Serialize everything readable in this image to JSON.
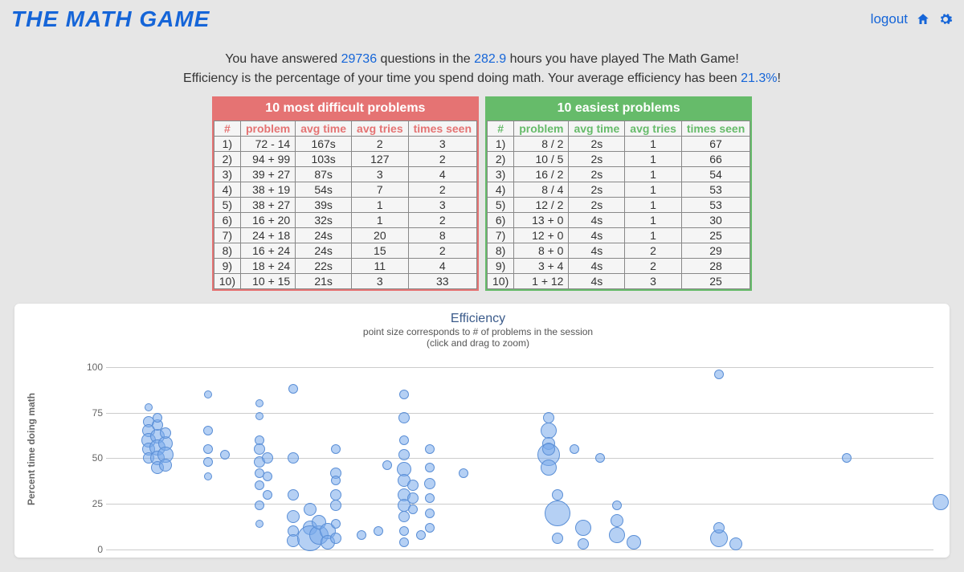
{
  "colors": {
    "accent": "#1565d8",
    "hard_header": "#e57373",
    "easy_header": "#66bb6a",
    "bubble_fill": "rgba(120,170,235,0.55)",
    "bubble_stroke": "#5b8fd6"
  },
  "app_title": "THE MATH GAME",
  "nav": {
    "logout": "logout"
  },
  "summary": {
    "line1_a": "You have answered ",
    "questions": "29736",
    "line1_b": " questions in the ",
    "hours": "282.9",
    "line1_c": " hours you have played The Math Game!",
    "line2_a": "Efficiency is the percentage of your time you spend doing math. Your average efficiency has been ",
    "efficiency": "21.3%",
    "line2_b": "!"
  },
  "tables": {
    "hard": {
      "title": "10 most difficult problems",
      "headers": [
        "#",
        "problem",
        "avg time",
        "avg tries",
        "times seen"
      ],
      "rows": [
        [
          "1)",
          "72 - 14",
          "167s",
          "2",
          "3"
        ],
        [
          "2)",
          "94 + 99",
          "103s",
          "127",
          "2"
        ],
        [
          "3)",
          "39 + 27",
          "87s",
          "3",
          "4"
        ],
        [
          "4)",
          "38 + 19",
          "54s",
          "7",
          "2"
        ],
        [
          "5)",
          "38 + 27",
          "39s",
          "1",
          "3"
        ],
        [
          "6)",
          "16 + 20",
          "32s",
          "1",
          "2"
        ],
        [
          "7)",
          "24 + 18",
          "24s",
          "20",
          "8"
        ],
        [
          "8)",
          "16 + 24",
          "24s",
          "15",
          "2"
        ],
        [
          "9)",
          "18 + 24",
          "22s",
          "11",
          "4"
        ],
        [
          "10)",
          "10 + 15",
          "21s",
          "3",
          "33"
        ]
      ]
    },
    "easy": {
      "title": "10 easiest problems",
      "headers": [
        "#",
        "problem",
        "avg time",
        "avg tries",
        "times seen"
      ],
      "rows": [
        [
          "1)",
          "8 / 2",
          "2s",
          "1",
          "67"
        ],
        [
          "2)",
          "10 / 5",
          "2s",
          "1",
          "66"
        ],
        [
          "3)",
          "16 / 2",
          "2s",
          "1",
          "54"
        ],
        [
          "4)",
          "8 / 4",
          "2s",
          "1",
          "53"
        ],
        [
          "5)",
          "12 / 2",
          "2s",
          "1",
          "53"
        ],
        [
          "6)",
          "13 + 0",
          "4s",
          "1",
          "30"
        ],
        [
          "7)",
          "12 + 0",
          "4s",
          "1",
          "25"
        ],
        [
          "8)",
          "8 + 0",
          "4s",
          "2",
          "29"
        ],
        [
          "9)",
          "3 + 4",
          "4s",
          "2",
          "28"
        ],
        [
          "10)",
          "1 + 12",
          "4s",
          "3",
          "25"
        ]
      ]
    }
  },
  "chart": {
    "type": "bubble",
    "title": "Efficiency",
    "subtitle1": "point size corresponds to # of problems in the session",
    "subtitle2": "(click and drag to zoom)",
    "ylabel": "Percent time doing math",
    "ylim": [
      0,
      110
    ],
    "yticks": [
      0,
      25,
      50,
      75,
      100
    ],
    "background": "#ffffff",
    "grid_color": "#cccccc",
    "axis_line_color": "#777777",
    "points": [
      {
        "x": 5,
        "y": 70,
        "s": 7
      },
      {
        "x": 5,
        "y": 65,
        "s": 8
      },
      {
        "x": 5,
        "y": 60,
        "s": 9
      },
      {
        "x": 5,
        "y": 55,
        "s": 8
      },
      {
        "x": 5,
        "y": 50,
        "s": 7
      },
      {
        "x": 5,
        "y": 78,
        "s": 5
      },
      {
        "x": 6,
        "y": 62,
        "s": 9
      },
      {
        "x": 6,
        "y": 56,
        "s": 10
      },
      {
        "x": 6,
        "y": 50,
        "s": 9
      },
      {
        "x": 6,
        "y": 45,
        "s": 8
      },
      {
        "x": 6,
        "y": 68,
        "s": 7
      },
      {
        "x": 6,
        "y": 72,
        "s": 6
      },
      {
        "x": 7,
        "y": 58,
        "s": 9
      },
      {
        "x": 7,
        "y": 52,
        "s": 10
      },
      {
        "x": 7,
        "y": 46,
        "s": 8
      },
      {
        "x": 7,
        "y": 64,
        "s": 7
      },
      {
        "x": 12,
        "y": 85,
        "s": 5
      },
      {
        "x": 12,
        "y": 65,
        "s": 6
      },
      {
        "x": 12,
        "y": 55,
        "s": 6
      },
      {
        "x": 12,
        "y": 48,
        "s": 6
      },
      {
        "x": 12,
        "y": 40,
        "s": 5
      },
      {
        "x": 14,
        "y": 52,
        "s": 6
      },
      {
        "x": 18,
        "y": 80,
        "s": 5
      },
      {
        "x": 18,
        "y": 73,
        "s": 5
      },
      {
        "x": 18,
        "y": 60,
        "s": 6
      },
      {
        "x": 18,
        "y": 55,
        "s": 7
      },
      {
        "x": 18,
        "y": 48,
        "s": 7
      },
      {
        "x": 18,
        "y": 42,
        "s": 6
      },
      {
        "x": 18,
        "y": 35,
        "s": 6
      },
      {
        "x": 18,
        "y": 24,
        "s": 6
      },
      {
        "x": 18,
        "y": 14,
        "s": 5
      },
      {
        "x": 19,
        "y": 50,
        "s": 7
      },
      {
        "x": 19,
        "y": 40,
        "s": 6
      },
      {
        "x": 19,
        "y": 30,
        "s": 6
      },
      {
        "x": 22,
        "y": 88,
        "s": 6
      },
      {
        "x": 22,
        "y": 50,
        "s": 7
      },
      {
        "x": 22,
        "y": 30,
        "s": 7
      },
      {
        "x": 22,
        "y": 18,
        "s": 8
      },
      {
        "x": 22,
        "y": 10,
        "s": 7
      },
      {
        "x": 22,
        "y": 5,
        "s": 8
      },
      {
        "x": 24,
        "y": 22,
        "s": 8
      },
      {
        "x": 24,
        "y": 12,
        "s": 9
      },
      {
        "x": 24,
        "y": 6,
        "s": 16
      },
      {
        "x": 25,
        "y": 8,
        "s": 12
      },
      {
        "x": 25,
        "y": 15,
        "s": 9
      },
      {
        "x": 26,
        "y": 10,
        "s": 10
      },
      {
        "x": 26,
        "y": 4,
        "s": 9
      },
      {
        "x": 27,
        "y": 55,
        "s": 6
      },
      {
        "x": 27,
        "y": 42,
        "s": 7
      },
      {
        "x": 27,
        "y": 38,
        "s": 6
      },
      {
        "x": 27,
        "y": 30,
        "s": 7
      },
      {
        "x": 27,
        "y": 24,
        "s": 7
      },
      {
        "x": 27,
        "y": 14,
        "s": 6
      },
      {
        "x": 27,
        "y": 6,
        "s": 7
      },
      {
        "x": 30,
        "y": 8,
        "s": 6
      },
      {
        "x": 32,
        "y": 10,
        "s": 6
      },
      {
        "x": 33,
        "y": 46,
        "s": 6
      },
      {
        "x": 35,
        "y": 85,
        "s": 6
      },
      {
        "x": 35,
        "y": 72,
        "s": 7
      },
      {
        "x": 35,
        "y": 60,
        "s": 6
      },
      {
        "x": 35,
        "y": 52,
        "s": 7
      },
      {
        "x": 35,
        "y": 44,
        "s": 9
      },
      {
        "x": 35,
        "y": 38,
        "s": 8
      },
      {
        "x": 35,
        "y": 30,
        "s": 8
      },
      {
        "x": 35,
        "y": 24,
        "s": 8
      },
      {
        "x": 35,
        "y": 18,
        "s": 7
      },
      {
        "x": 35,
        "y": 10,
        "s": 6
      },
      {
        "x": 35,
        "y": 4,
        "s": 6
      },
      {
        "x": 36,
        "y": 35,
        "s": 7
      },
      {
        "x": 36,
        "y": 28,
        "s": 7
      },
      {
        "x": 36,
        "y": 22,
        "s": 6
      },
      {
        "x": 37,
        "y": 8,
        "s": 6
      },
      {
        "x": 38,
        "y": 55,
        "s": 6
      },
      {
        "x": 38,
        "y": 45,
        "s": 6
      },
      {
        "x": 38,
        "y": 36,
        "s": 7
      },
      {
        "x": 38,
        "y": 28,
        "s": 6
      },
      {
        "x": 38,
        "y": 20,
        "s": 6
      },
      {
        "x": 38,
        "y": 12,
        "s": 6
      },
      {
        "x": 42,
        "y": 42,
        "s": 6
      },
      {
        "x": 52,
        "y": 72,
        "s": 7
      },
      {
        "x": 52,
        "y": 65,
        "s": 10
      },
      {
        "x": 52,
        "y": 58,
        "s": 8
      },
      {
        "x": 52,
        "y": 52,
        "s": 14
      },
      {
        "x": 52,
        "y": 45,
        "s": 10
      },
      {
        "x": 52,
        "y": 55,
        "s": 8
      },
      {
        "x": 53,
        "y": 30,
        "s": 7
      },
      {
        "x": 53,
        "y": 20,
        "s": 16
      },
      {
        "x": 53,
        "y": 6,
        "s": 7
      },
      {
        "x": 55,
        "y": 55,
        "s": 6
      },
      {
        "x": 56,
        "y": 12,
        "s": 10
      },
      {
        "x": 56,
        "y": 3,
        "s": 7
      },
      {
        "x": 58,
        "y": 50,
        "s": 6
      },
      {
        "x": 60,
        "y": 16,
        "s": 8
      },
      {
        "x": 60,
        "y": 8,
        "s": 10
      },
      {
        "x": 60,
        "y": 24,
        "s": 6
      },
      {
        "x": 62,
        "y": 4,
        "s": 9
      },
      {
        "x": 72,
        "y": 96,
        "s": 6
      },
      {
        "x": 72,
        "y": 6,
        "s": 11
      },
      {
        "x": 72,
        "y": 12,
        "s": 7
      },
      {
        "x": 74,
        "y": 3,
        "s": 8
      },
      {
        "x": 87,
        "y": 50,
        "s": 6
      },
      {
        "x": 98,
        "y": 26,
        "s": 10
      }
    ]
  }
}
